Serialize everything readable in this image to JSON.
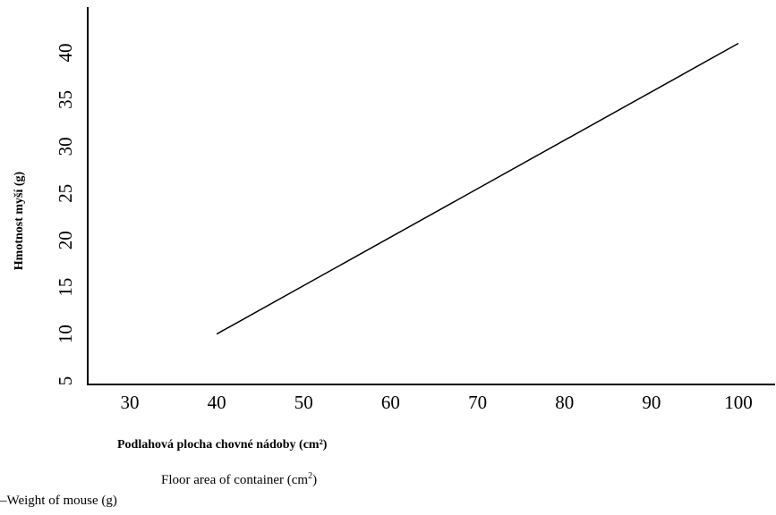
{
  "chart_data": {
    "type": "line",
    "xlabel": "Podlahová plocha chovné nádoby (cm²)",
    "ylabel": "Hmotnost myší (g)",
    "x_ticks": [
      30,
      40,
      50,
      60,
      70,
      80,
      90,
      100
    ],
    "y_ticks": [
      5,
      10,
      15,
      20,
      25,
      30,
      35,
      40
    ],
    "xlim": [
      25,
      105
    ],
    "ylim": [
      5,
      45
    ],
    "grid": false,
    "series": [
      {
        "x": [
          40,
          100
        ],
        "y": [
          10,
          41
        ]
      }
    ]
  },
  "captions": {
    "x_en": "Floor area of container (cm",
    "x_en_sup": "2",
    "x_en_close": ")",
    "y_en": "–Weight of mouse (g)"
  }
}
